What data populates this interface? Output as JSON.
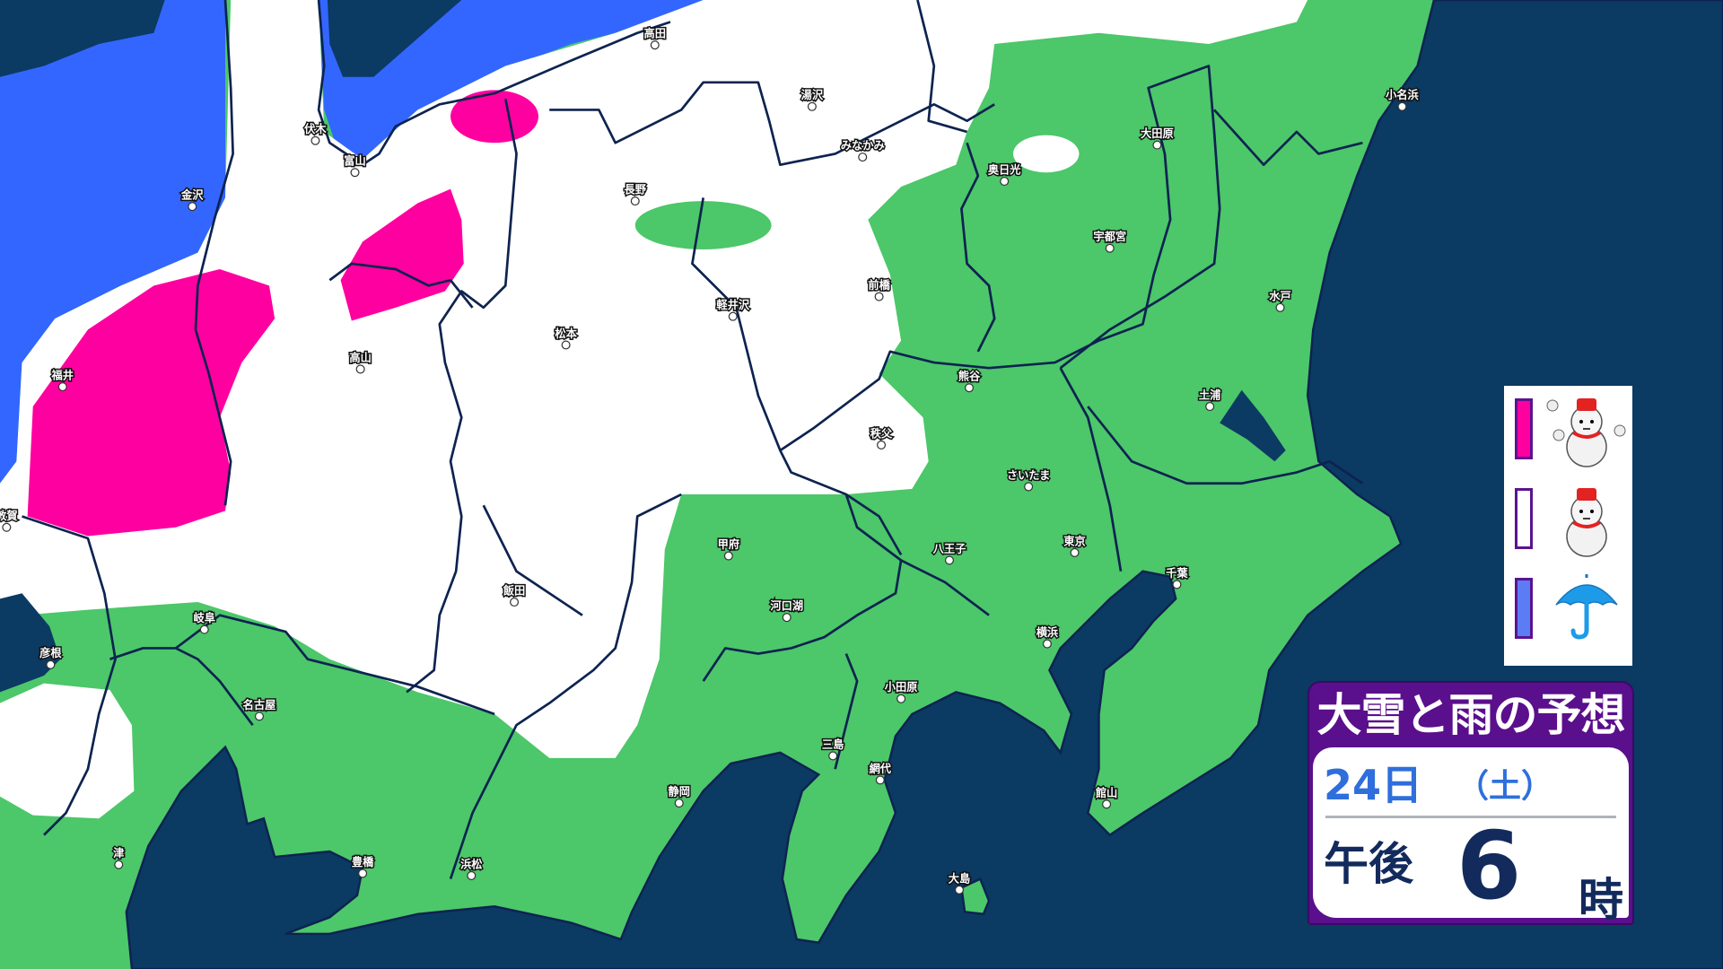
{
  "map": {
    "colors": {
      "sea": "#0b3a63",
      "land_rain_light": "#4cc76a",
      "snow": "#ffffff",
      "heavy_snow": "#ff00a0",
      "rain": "#3366ff",
      "borders": "#0d2350"
    },
    "cities": [
      "高田",
      "湯沢",
      "みなかみ",
      "長野",
      "伏木",
      "富山",
      "金沢",
      "福井",
      "高山",
      "松本",
      "軽井沢",
      "前橋",
      "奥日光",
      "大田原",
      "宇都宮",
      "小名浜",
      "水戸",
      "土浦",
      "熊谷",
      "秩父",
      "さいたま",
      "甲府",
      "八王子",
      "東京",
      "千葉",
      "河口湖",
      "横浜",
      "小田原",
      "三島",
      "網代",
      "静岡",
      "館山",
      "大島",
      "飯田",
      "岐阜",
      "彦根",
      "名古屋",
      "津",
      "豊橋",
      "浜松",
      "敦賀"
    ]
  },
  "legend": {
    "items": [
      {
        "color": "#ff00a0",
        "icon": "snowman-heavy-snow-icon",
        "meaning": "heavy snow"
      },
      {
        "color": "#ffffff",
        "icon": "snowman-icon",
        "meaning": "snow"
      },
      {
        "color": "#5b7cf5",
        "icon": "umbrella-icon",
        "meaning": "rain"
      }
    ]
  },
  "info": {
    "title": "大雪と雨の予想",
    "date": "24日",
    "weekday": "（土）",
    "ampm": "午後",
    "hour": "6",
    "hour_unit": "時",
    "colors": {
      "header": "#5a0f8c",
      "date": "#2f6fdc",
      "time": "#122a5c"
    }
  }
}
